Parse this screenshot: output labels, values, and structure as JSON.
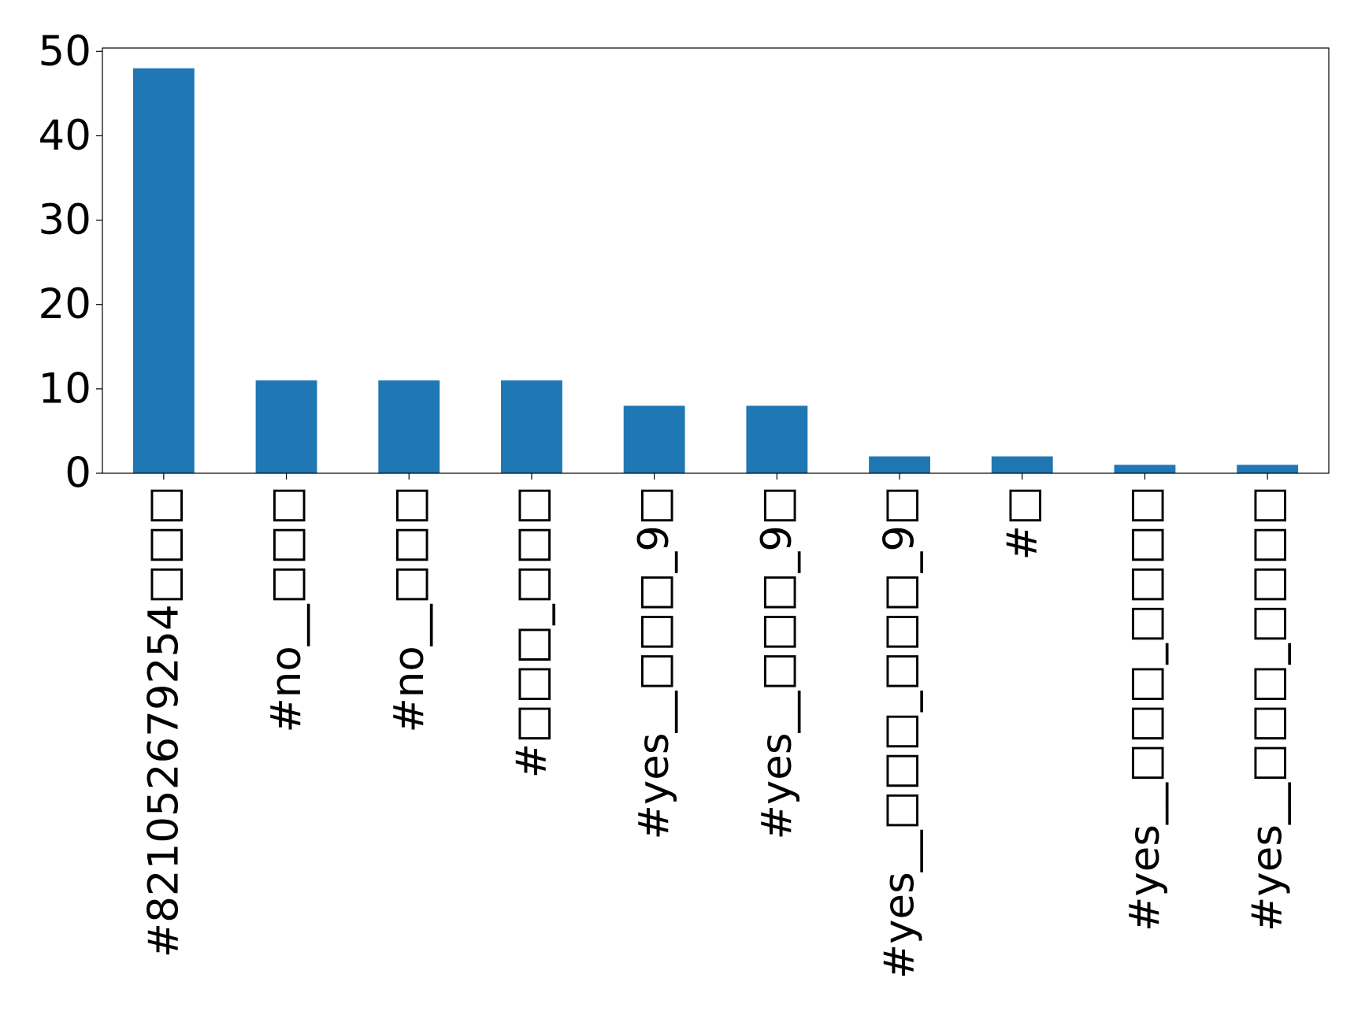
{
  "chart_data": {
    "type": "bar",
    "categories": [
      "#821052679254□□□",
      "#no__□□□",
      "#no__□□□",
      "#□□□_□□□",
      "#yes__□□□_9□",
      "#yes__□□□_9□",
      "#yes__□□□_□□□_9□",
      "#□",
      "#yes__□□□_□□□□",
      "#yes__□□□_□□□□"
    ],
    "values": [
      48,
      11,
      11,
      11,
      8,
      8,
      2,
      2,
      1,
      1
    ],
    "color": "#1f77b4",
    "ylim": [
      0,
      50.4
    ],
    "yticks": [
      0,
      10,
      20,
      30,
      40,
      50
    ],
    "grid": false
  }
}
